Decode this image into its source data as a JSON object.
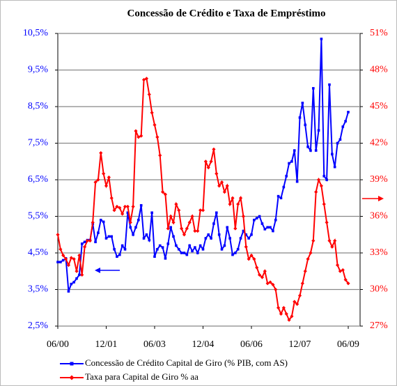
{
  "chart_data": {
    "type": "line",
    "title": "Concessão de Crédito e Taxa de Empréstimo",
    "categories": [
      "06/00",
      null,
      null,
      null,
      null,
      null,
      null,
      null,
      null,
      null,
      null,
      null,
      null,
      null,
      null,
      null,
      null,
      null,
      "12/01",
      null,
      null,
      null,
      null,
      null,
      null,
      null,
      null,
      null,
      null,
      null,
      null,
      null,
      null,
      null,
      null,
      null,
      "06/03",
      null,
      null,
      null,
      null,
      null,
      null,
      null,
      null,
      null,
      null,
      null,
      null,
      null,
      null,
      null,
      null,
      null,
      "12/04",
      null,
      null,
      null,
      null,
      null,
      null,
      null,
      null,
      null,
      null,
      null,
      null,
      null,
      null,
      null,
      null,
      null,
      "06/06",
      null,
      null,
      null,
      null,
      null,
      null,
      null,
      null,
      null,
      null,
      null,
      null,
      null,
      null,
      null,
      null,
      null,
      "12/07",
      null,
      null,
      null,
      null,
      null,
      null,
      null,
      null,
      null,
      null,
      null,
      null,
      null,
      null,
      null,
      null,
      null,
      "06/09"
    ],
    "series": [
      {
        "name": "Concessão de Crédito Capital de Giro (% PIB, com AS)",
        "color": "#0000ff",
        "axis": "y",
        "values": [
          4.25,
          4.25,
          4.3,
          4.35,
          3.45,
          3.65,
          3.7,
          3.8,
          3.9,
          4.75,
          4.8,
          4.85,
          4.85,
          5.3,
          4.8,
          5.05,
          5.4,
          5.35,
          4.9,
          4.95,
          4.95,
          4.6,
          4.4,
          4.45,
          4.7,
          4.6,
          5.6,
          5.2,
          5.0,
          5.2,
          5.4,
          5.8,
          4.9,
          5.0,
          4.85,
          5.6,
          4.4,
          4.6,
          4.7,
          4.65,
          4.35,
          4.75,
          5.2,
          4.95,
          4.7,
          4.6,
          4.5,
          4.5,
          4.45,
          4.7,
          4.55,
          4.65,
          4.5,
          4.7,
          4.6,
          4.9,
          5.0,
          4.9,
          5.3,
          5.6,
          5.0,
          4.6,
          4.7,
          5.2,
          4.9,
          4.45,
          4.5,
          4.6,
          4.9,
          5.1,
          5.0,
          4.9,
          5.0,
          5.4,
          5.45,
          5.5,
          5.3,
          5.15,
          5.2,
          5.2,
          5.1,
          5.4,
          6.05,
          6.0,
          6.3,
          6.6,
          6.95,
          7.0,
          7.3,
          6.45,
          8.2,
          8.6,
          8.0,
          7.4,
          7.3,
          9.0,
          7.3,
          7.85,
          10.35,
          6.6,
          6.5,
          9.1,
          7.2,
          6.85,
          7.5,
          7.6,
          7.95,
          8.1,
          8.35
        ]
      },
      {
        "name": "Taxa para Capital de Giro % aa",
        "color": "#ff0000",
        "axis": "y2",
        "values": [
          34.5,
          33.3,
          32.8,
          32.5,
          32.0,
          32.6,
          32.5,
          31.5,
          32.8,
          31.2,
          33.5,
          34.0,
          34.0,
          35.5,
          38.8,
          39.0,
          41.2,
          39.5,
          38.5,
          39.2,
          37.5,
          36.5,
          36.8,
          36.7,
          36.2,
          36.8,
          36.8,
          35.5,
          36.8,
          43.0,
          42.5,
          42.6,
          47.2,
          47.3,
          46.0,
          44.5,
          43.5,
          42.5,
          41.0,
          38.0,
          37.8,
          35.0,
          36.0,
          35.5,
          37.0,
          36.5,
          35.0,
          34.5,
          35.0,
          35.5,
          36.0,
          34.8,
          34.8,
          36.5,
          36.5,
          40.5,
          40.0,
          40.5,
          41.5,
          39.5,
          38.5,
          38.8,
          38.0,
          38.5,
          37.0,
          37.5,
          35.0,
          37.0,
          37.5,
          36.0,
          33.5,
          32.5,
          32.8,
          32.5,
          31.8,
          31.2,
          31.0,
          31.5,
          30.5,
          30.6,
          30.4,
          30.0,
          28.5,
          28.0,
          28.5,
          28.0,
          27.5,
          27.8,
          29.0,
          28.8,
          29.5,
          30.5,
          31.5,
          32.5,
          33.0,
          34.0,
          38.0,
          39.0,
          38.5,
          37.0,
          35.5,
          34.0,
          33.5,
          34.0,
          32.0,
          31.5,
          31.6,
          30.8,
          30.5
        ]
      }
    ],
    "ylim": [
      2.5,
      10.5
    ],
    "yticks": [
      {
        "value": 2.5,
        "label": "2,5%"
      },
      {
        "value": 3.5,
        "label": "3,5%"
      },
      {
        "value": 4.5,
        "label": "4,5%"
      },
      {
        "value": 5.5,
        "label": "5,5%"
      },
      {
        "value": 6.5,
        "label": "6,5%"
      },
      {
        "value": 7.5,
        "label": "7,5%"
      },
      {
        "value": 8.5,
        "label": "8,5%"
      },
      {
        "value": 9.5,
        "label": "9,5%"
      },
      {
        "value": 10.5,
        "label": "10,5%"
      }
    ],
    "y2lim": [
      27,
      51
    ],
    "y2ticks": [
      {
        "value": 27,
        "label": "27%"
      },
      {
        "value": 30,
        "label": "30%"
      },
      {
        "value": 33,
        "label": "33%"
      },
      {
        "value": 36,
        "label": "36%"
      },
      {
        "value": 39,
        "label": "39%"
      },
      {
        "value": 42,
        "label": "42%"
      },
      {
        "value": 45,
        "label": "45%"
      },
      {
        "value": 48,
        "label": "48%"
      },
      {
        "value": 51,
        "label": "51%"
      }
    ],
    "grid": true,
    "legend": "bottom"
  }
}
